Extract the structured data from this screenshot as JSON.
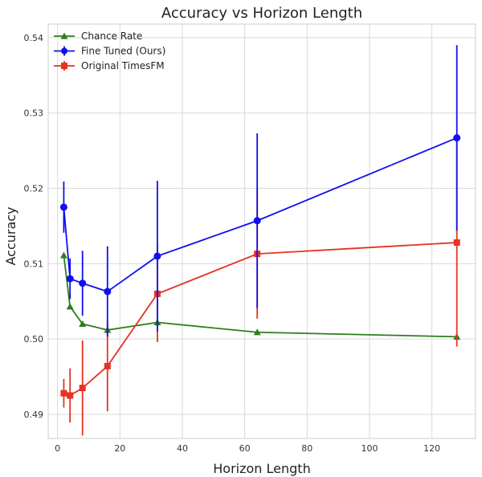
{
  "chart_data": {
    "type": "line",
    "title": "Accuracy vs Horizon Length",
    "xlabel": "Horizon Length",
    "ylabel": "Accuracy",
    "xlim": [
      -3,
      134
    ],
    "ylim": [
      0.4868,
      0.5418
    ],
    "xticks": [
      0,
      20,
      40,
      60,
      80,
      100,
      120
    ],
    "yticks": [
      0.49,
      0.5,
      0.51,
      0.52,
      0.53,
      0.54
    ],
    "ytick_labels": [
      "0.49",
      "0.50",
      "0.51",
      "0.52",
      "0.53",
      "0.54"
    ],
    "grid": true,
    "legend_position": "top-left",
    "series": [
      {
        "name": "Chance Rate",
        "color": "#2e7d1e",
        "marker": "triangle",
        "x": [
          2,
          4,
          8,
          16,
          32,
          64,
          128
        ],
        "y": [
          0.5111,
          0.5043,
          0.502,
          0.5012,
          0.5022,
          0.5009,
          0.5003
        ],
        "err": [
          0,
          0,
          0,
          0,
          0,
          0,
          0
        ]
      },
      {
        "name": "Fine Tuned (Ours)",
        "color": "#1010ee",
        "marker": "circle",
        "x": [
          2,
          4,
          8,
          16,
          32,
          64,
          128
        ],
        "y": [
          0.5175,
          0.508,
          0.5074,
          0.5063,
          0.511,
          0.5157,
          0.5267
        ],
        "err": [
          0.0034,
          0.0027,
          0.0043,
          0.006,
          0.01,
          0.0116,
          0.0123
        ]
      },
      {
        "name": "Original TimesFM",
        "color": "#e63222",
        "marker": "square",
        "x": [
          2,
          4,
          8,
          16,
          32,
          64,
          128
        ],
        "y": [
          0.4928,
          0.4925,
          0.4935,
          0.4964,
          0.506,
          0.5113,
          0.5128
        ],
        "err": [
          0.0019,
          0.0036,
          0.0063,
          0.006,
          0.0064,
          0.0086,
          0.0138
        ]
      }
    ]
  }
}
